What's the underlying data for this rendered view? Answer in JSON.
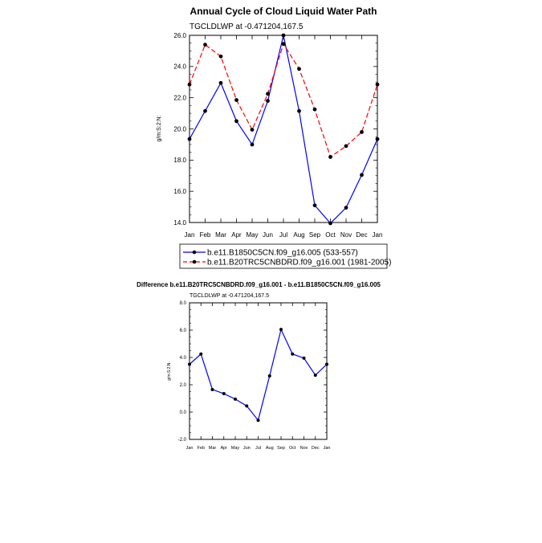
{
  "chart_data": [
    {
      "type": "line",
      "title": "Annual Cycle of Cloud Liquid Water Path",
      "subtitle": "TGCLDLWP at -0.471204,167.5",
      "ylabel": "g/m:S:2:N:",
      "xlabel": "",
      "ylim": [
        14,
        26
      ],
      "yticks": [
        "14.0",
        "16.0",
        "18.0",
        "20.0",
        "22.0",
        "24.0",
        "26.0"
      ],
      "categories": [
        "Jan",
        "Feb",
        "Mar",
        "Apr",
        "May",
        "Jun",
        "Jul",
        "Aug",
        "Sep",
        "Oct",
        "Nov",
        "Dec",
        "Jan"
      ],
      "grid": false,
      "legend_position": "bottom",
      "series": [
        {
          "name": "b.e11.B1850C5CN.f09_g16.005 (533-557)",
          "color": "#0000ff",
          "dash": "solid",
          "values": [
            19.35,
            21.15,
            22.95,
            20.5,
            19.0,
            21.8,
            26.0,
            21.15,
            15.1,
            13.95,
            14.95,
            17.05,
            19.35
          ]
        },
        {
          "name": "b.e11.B20TRC5CNBDRD.f09_g16.001 (1981-2005)",
          "color": "#ff0000",
          "dash": "dashed",
          "values": [
            22.85,
            25.4,
            24.65,
            21.85,
            19.95,
            22.25,
            25.45,
            23.85,
            21.25,
            18.2,
            18.9,
            19.8,
            22.85
          ]
        }
      ]
    },
    {
      "type": "line",
      "title": "Difference b.e11.B20TRC5CNBDRD.f09_g16.001 - b.e11.B1850C5CN.f09_g16.005",
      "subtitle": "TGCLDLWP at -0.471204,167.5",
      "ylabel": "g/m:S:2:N:",
      "xlabel": "",
      "ylim": [
        -2,
        8
      ],
      "yticks": [
        "-2.0",
        "0.0",
        "2.0",
        "4.0",
        "6.0",
        "8.0"
      ],
      "categories": [
        "Jan",
        "Feb",
        "Mar",
        "Apr",
        "May",
        "Jun",
        "Jul",
        "Aug",
        "Sep",
        "Oct",
        "Nov",
        "Dec",
        "Jan"
      ],
      "grid": false,
      "series": [
        {
          "color": "#0000ff",
          "dash": "solid",
          "values": [
            3.5,
            4.25,
            1.65,
            1.35,
            0.95,
            0.45,
            -0.6,
            2.65,
            6.05,
            4.25,
            3.95,
            2.7,
            3.5
          ]
        }
      ]
    }
  ]
}
